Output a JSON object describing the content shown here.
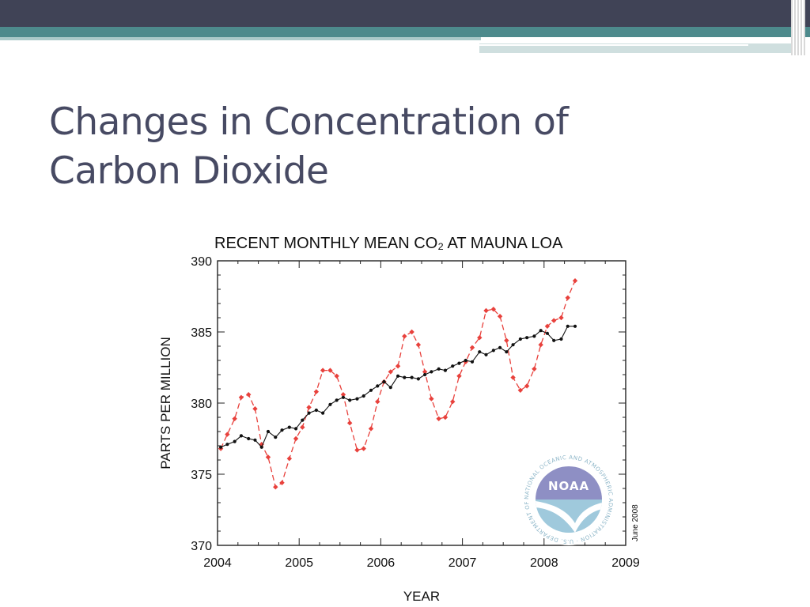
{
  "slide": {
    "title_line1": "Changes in Concentration of",
    "title_line2": "Carbon Dioxide"
  },
  "chart_data": {
    "type": "line",
    "title": "RECENT MONTHLY MEAN CO₂ AT MAUNA LOA",
    "xlabel": "YEAR",
    "ylabel": "PARTS PER MILLION",
    "xlim": [
      2004,
      2009
    ],
    "ylim": [
      370,
      390
    ],
    "x_ticks": [
      "2004",
      "2005",
      "2006",
      "2007",
      "2008",
      "2009"
    ],
    "y_ticks": [
      "370",
      "375",
      "380",
      "385",
      "390"
    ],
    "date_stamp": "June 2008",
    "grid": false,
    "series": [
      {
        "color": "#e8413c",
        "style": "dashed-with-diamonds",
        "x": [
          2004.04,
          2004.12,
          2004.21,
          2004.29,
          2004.38,
          2004.46,
          2004.54,
          2004.62,
          2004.71,
          2004.79,
          2004.88,
          2004.96,
          2005.04,
          2005.12,
          2005.21,
          2005.29,
          2005.38,
          2005.46,
          2005.54,
          2005.62,
          2005.71,
          2005.79,
          2005.88,
          2005.96,
          2006.04,
          2006.12,
          2006.21,
          2006.29,
          2006.38,
          2006.46,
          2006.54,
          2006.62,
          2006.71,
          2006.79,
          2006.88,
          2006.96,
          2007.04,
          2007.12,
          2007.21,
          2007.29,
          2007.38,
          2007.46,
          2007.54,
          2007.62,
          2007.71,
          2007.79,
          2007.88,
          2007.96,
          2008.04,
          2008.12,
          2008.21,
          2008.29,
          2008.38
        ],
        "y": [
          376.8,
          377.8,
          378.9,
          380.4,
          380.6,
          379.6,
          377.1,
          376.2,
          374.1,
          374.4,
          376.1,
          377.5,
          378.3,
          379.7,
          380.8,
          382.3,
          382.3,
          381.9,
          380.6,
          378.6,
          376.7,
          376.8,
          378.2,
          380.1,
          381.5,
          382.2,
          382.6,
          384.7,
          385.0,
          384.1,
          382.2,
          380.3,
          378.9,
          379.0,
          380.1,
          381.9,
          382.9,
          383.9,
          384.6,
          386.5,
          386.6,
          386.1,
          384.4,
          381.8,
          380.9,
          381.2,
          382.4,
          384.1,
          385.4,
          385.8,
          386.0,
          387.4,
          388.6
        ]
      },
      {
        "color": "#111111",
        "style": "solid-with-dots",
        "x": [
          2004.04,
          2004.12,
          2004.21,
          2004.29,
          2004.38,
          2004.46,
          2004.54,
          2004.62,
          2004.71,
          2004.79,
          2004.88,
          2004.96,
          2005.04,
          2005.12,
          2005.21,
          2005.29,
          2005.38,
          2005.46,
          2005.54,
          2005.62,
          2005.71,
          2005.79,
          2005.88,
          2005.96,
          2006.04,
          2006.12,
          2006.21,
          2006.29,
          2006.38,
          2006.46,
          2006.54,
          2006.62,
          2006.71,
          2006.79,
          2006.88,
          2006.96,
          2007.04,
          2007.12,
          2007.21,
          2007.29,
          2007.38,
          2007.46,
          2007.54,
          2007.62,
          2007.71,
          2007.79,
          2007.88,
          2007.96,
          2008.04,
          2008.12,
          2008.21,
          2008.29,
          2008.38
        ],
        "y": [
          376.9,
          377.1,
          377.3,
          377.7,
          377.5,
          377.4,
          376.9,
          378.0,
          377.6,
          378.1,
          378.3,
          378.2,
          378.8,
          379.3,
          379.5,
          379.3,
          379.9,
          380.2,
          380.4,
          380.2,
          380.3,
          380.5,
          380.9,
          381.2,
          381.5,
          381.1,
          381.9,
          381.8,
          381.8,
          381.7,
          382.0,
          382.2,
          382.4,
          382.3,
          382.6,
          382.8,
          383.0,
          382.9,
          383.6,
          383.4,
          383.7,
          383.9,
          383.6,
          384.1,
          384.5,
          384.6,
          384.7,
          385.1,
          384.9,
          384.4,
          384.5,
          385.4,
          385.4
        ]
      }
    ]
  },
  "logo": {
    "name": "noaa-logo",
    "text": "NOAA",
    "ring_text": "NATIONAL OCEANIC AND ATMOSPHERIC ADMINISTRATION · U.S. DEPARTMENT OF COMMERCE ·",
    "colors": {
      "sky": "#8e8fc4",
      "sea": "#9fc9dc",
      "bird": "#ffffff"
    }
  }
}
